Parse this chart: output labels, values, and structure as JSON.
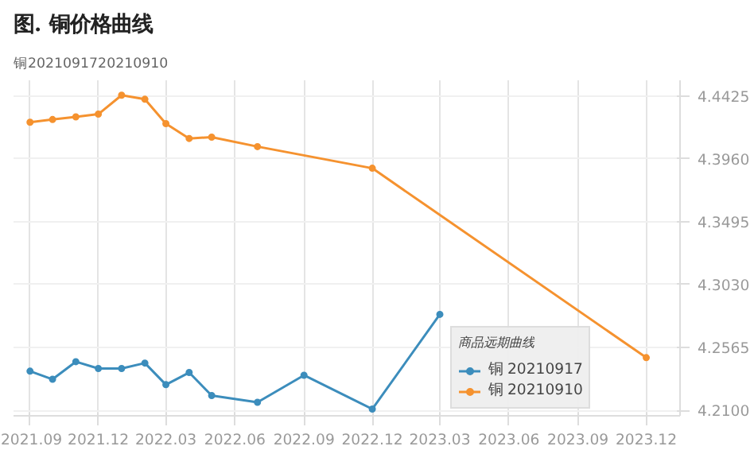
{
  "chart_data": {
    "type": "line",
    "title": "图. 铜价格曲线",
    "annotations": [
      "铜2021091720210910"
    ],
    "legend_title": "商品远期曲线",
    "series": [
      {
        "name": "铜 20210917",
        "color": "#3c8dbc",
        "x": [
          "2021-09",
          "2021-10",
          "2021-11",
          "2021-12",
          "2022-01",
          "2022-02",
          "2022-03",
          "2022-04",
          "2022-05",
          "2022-07",
          "2022-09",
          "2022-12",
          "2023-03"
        ],
        "values": [
          4.239,
          4.233,
          4.246,
          4.241,
          4.241,
          4.245,
          4.229,
          4.238,
          4.221,
          4.216,
          4.236,
          4.211,
          4.281
        ]
      },
      {
        "name": "铜 20210910",
        "color": "#f5922f",
        "x": [
          "2021-09",
          "2021-10",
          "2021-11",
          "2021-12",
          "2022-01",
          "2022-02",
          "2022-03",
          "2022-04",
          "2022-05",
          "2022-07",
          "2022-12",
          "2023-12"
        ],
        "values": [
          4.423,
          4.425,
          4.427,
          4.429,
          4.443,
          4.44,
          4.422,
          4.411,
          4.412,
          4.405,
          4.389,
          4.249
        ]
      }
    ],
    "xlim": [
      "2021-08-10",
      "2024-01-15"
    ],
    "xticks": [
      {
        "value": "2021-09",
        "label": "2021.09"
      },
      {
        "value": "2021-12",
        "label": "2021.12"
      },
      {
        "value": "2022-03",
        "label": "2022.03"
      },
      {
        "value": "2022-06",
        "label": "2022.06"
      },
      {
        "value": "2022-09",
        "label": "2022.09"
      },
      {
        "value": "2022-12",
        "label": "2022.12"
      },
      {
        "value": "2023-03",
        "label": "2023.03"
      },
      {
        "value": "2023-06",
        "label": "2023.06"
      },
      {
        "value": "2023-09",
        "label": "2023.09"
      },
      {
        "value": "2023-12",
        "label": "2023.12"
      }
    ],
    "ylim": [
      4.206,
      4.454
    ],
    "yticks": [
      {
        "value": 4.21,
        "label": "4.2100"
      },
      4.2565,
      {
        "value": 4.303,
        "label": "4.3030"
      },
      4.3495,
      {
        "value": 4.396,
        "label": "4.3960"
      },
      4.4425
    ],
    "grid": true,
    "legend": "bottom right",
    "marker": "circle",
    "line_style": "solid"
  }
}
